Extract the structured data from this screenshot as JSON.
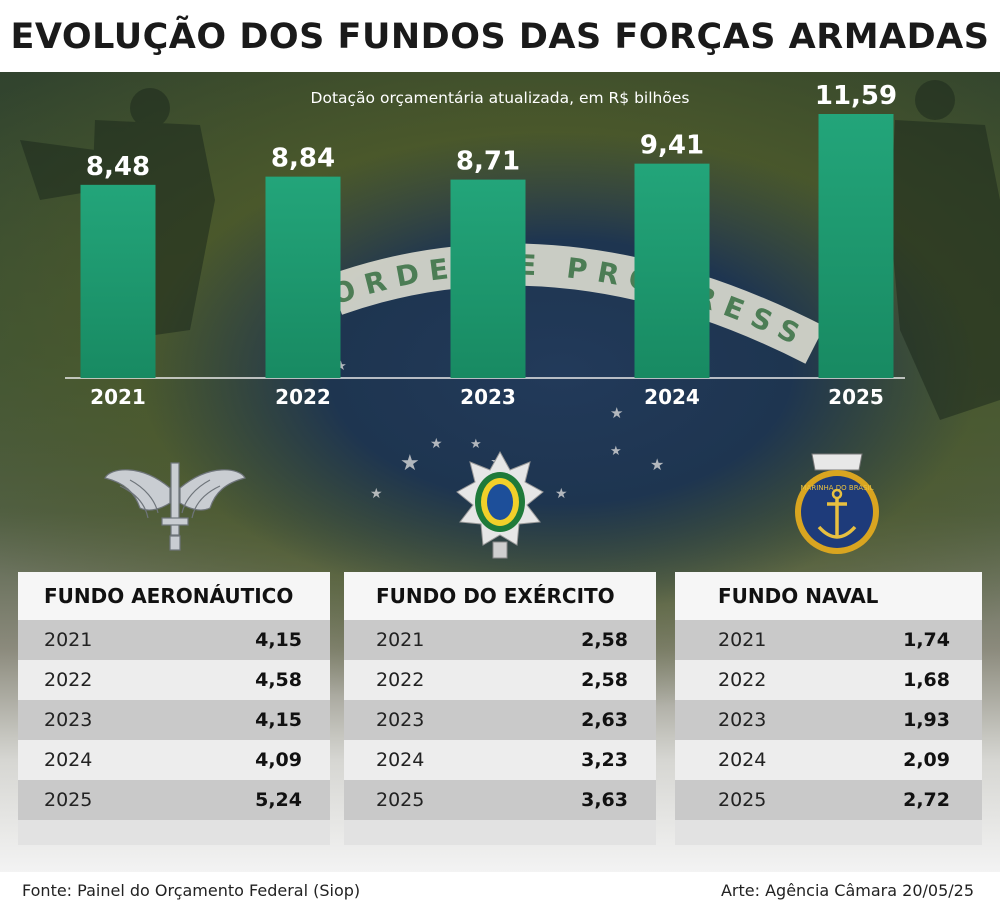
{
  "title": "EVOLUÇÃO DOS FUNDOS DAS FORÇAS ARMADAS",
  "chart_data": {
    "type": "bar",
    "subtitle": "Dotação orçamentária atualizada, em R$ bilhões",
    "categories": [
      "2021",
      "2022",
      "2023",
      "2024",
      "2025"
    ],
    "values": [
      8.48,
      8.84,
      8.71,
      9.41,
      11.59
    ],
    "value_labels": [
      "8,48",
      "8,84",
      "8,71",
      "9,41",
      "11,59"
    ],
    "ylim": [
      0,
      12
    ],
    "bar_color": "#1f9a6f",
    "grid": false
  },
  "flag_motto": "ORDEM E PROGRESSO",
  "tables": [
    {
      "title": "FUNDO AERONÁUTICO",
      "emblem": "air-force-wings-icon",
      "rows": [
        {
          "year": "2021",
          "value": "4,15"
        },
        {
          "year": "2022",
          "value": "4,58"
        },
        {
          "year": "2023",
          "value": "4,15"
        },
        {
          "year": "2024",
          "value": "4,09"
        },
        {
          "year": "2025",
          "value": "5,24"
        }
      ]
    },
    {
      "title": "FUNDO DO EXÉRCITO",
      "emblem": "army-star-emblem-icon",
      "rows": [
        {
          "year": "2021",
          "value": "2,58"
        },
        {
          "year": "2022",
          "value": "2,58"
        },
        {
          "year": "2023",
          "value": "2,63"
        },
        {
          "year": "2024",
          "value": "3,23"
        },
        {
          "year": "2025",
          "value": "3,63"
        }
      ]
    },
    {
      "title": "FUNDO NAVAL",
      "emblem": "navy-anchor-emblem-icon",
      "emblem_text": "MARINHA DO BRASIL",
      "rows": [
        {
          "year": "2021",
          "value": "1,74"
        },
        {
          "year": "2022",
          "value": "1,68"
        },
        {
          "year": "2023",
          "value": "1,93"
        },
        {
          "year": "2024",
          "value": "2,09"
        },
        {
          "year": "2025",
          "value": "2,72"
        }
      ]
    }
  ],
  "source": "Fonte: Painel do Orçamento Federal (Siop)",
  "credit": "Arte: Agência Câmara 20/05/25",
  "colors": {
    "bar": "#1f9a6f",
    "title": "#1a1a1a",
    "row_dark": "#c9c9c9",
    "row_light": "#ededed"
  }
}
